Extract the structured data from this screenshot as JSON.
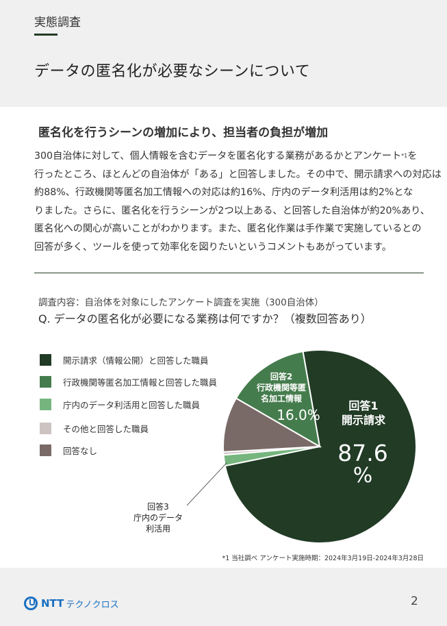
{
  "header": {
    "section_label": "実態調査",
    "title": "データの匿名化が必要なシーンについて"
  },
  "content": {
    "subheading": "匿名化を行うシーンの増加により、担当者の負担が増加",
    "body_lines": [
      "300自治体に対して、個人情報を含むデータを匿名化する業務があるかとアンケート",
      "を",
      "行ったところ、ほとんどの自治体が「ある」と回答しました。その中で、開示請求への対応は",
      "約88%、行政機関等匿名加工情報への対応は約16%、庁内のデータ利活用は約2%とな",
      "りました。さらに、匿名化を行うシーンが2つ以上ある、と回答した自治体が約20%あり、",
      "匿名化への関心が高いことがわかります。また、匿名化作業は手作業で実施しているとの",
      "回答が多く、ツールを使って効率化を図りたいというコメントもあがっています。"
    ],
    "footnote_ref": "*1"
  },
  "survey": {
    "note": "調査内容：自治体を対象にしたアンケート調査を実施（300自治体）",
    "question": "Q. データの匿名化が必要になる業務は何ですか？（複数回答あり）"
  },
  "chart_data": {
    "type": "pie",
    "title": "",
    "legend_position": "left",
    "legend": [
      {
        "label": "開示請求（情報公開）と回答した職員",
        "color": "#213b25"
      },
      {
        "label": "行政機関等匿名加工情報と回答した職員",
        "color": "#457c4d"
      },
      {
        "label": "庁内のデータ利活用と回答した職員",
        "color": "#76b57e"
      },
      {
        "label": "その他と回答した職員",
        "color": "#cdc4c2"
      },
      {
        "label": "回答なし",
        "color": "#7a6a67"
      }
    ],
    "slices": [
      {
        "key": "answer1",
        "label_lines": [
          "回答1",
          "開示請求"
        ],
        "value": 87.6,
        "value_label_lines": [
          "87.6",
          "%"
        ],
        "color": "#213b25"
      },
      {
        "key": "answer2",
        "label_lines": [
          "回答2",
          "行政機関等匿",
          "名加工情報"
        ],
        "value": 16.0,
        "value_label": "16.0%",
        "color": "#457c4d"
      },
      {
        "key": "answer3",
        "label_lines": [
          "回答3",
          "庁内のデータ",
          "利活用"
        ],
        "color": "#76b57e"
      },
      {
        "key": "other",
        "color": "#cdc4c2"
      },
      {
        "key": "none",
        "color": "#7a6a67"
      }
    ]
  },
  "footnote": "*1 当社調べ  アンケート実施時期：2024年3月19日-2024年3月28日",
  "footer": {
    "logo_text": "NTT",
    "logo_sub": "テクノクロス",
    "page_number": "2"
  }
}
